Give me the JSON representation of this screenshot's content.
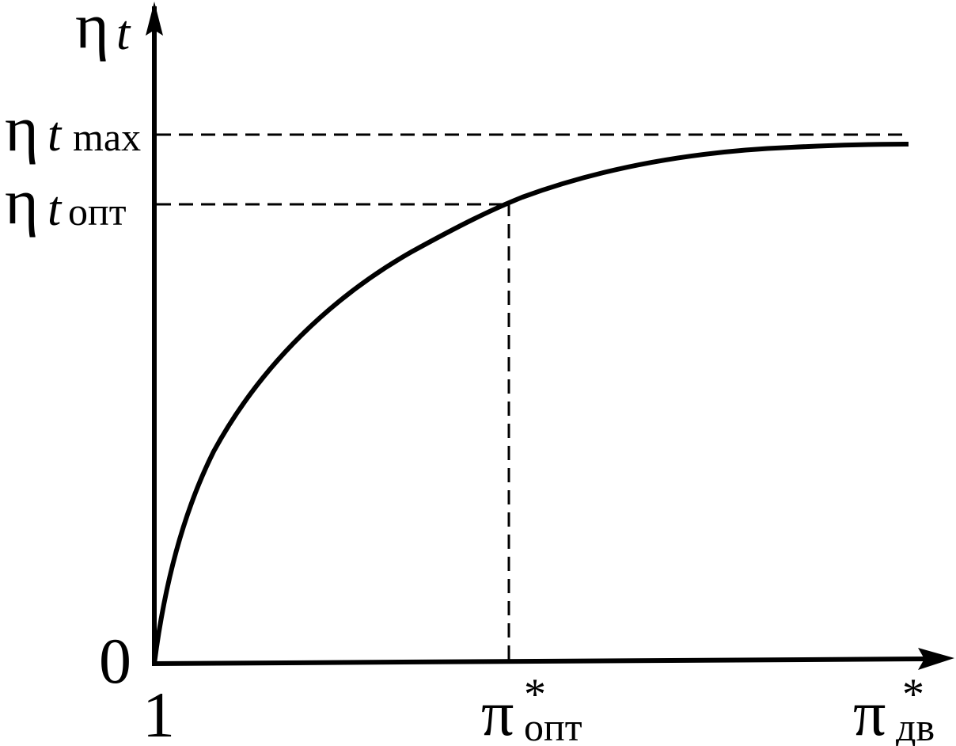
{
  "axes": {
    "y_label": {
      "symbol": "η",
      "subscript": "t"
    },
    "y_origin": "0",
    "x_origin": "1"
  },
  "levels": [
    {
      "symbol": "η",
      "subscript_italic": "t",
      "subscript": "max"
    },
    {
      "symbol": "η",
      "subscript_italic": "t",
      "subscript": "опт"
    }
  ],
  "x_marks": [
    {
      "symbol": "π",
      "superscript": "*",
      "subscript": "опт"
    },
    {
      "symbol": "π",
      "superscript": "*",
      "subscript": "дв"
    }
  ]
}
